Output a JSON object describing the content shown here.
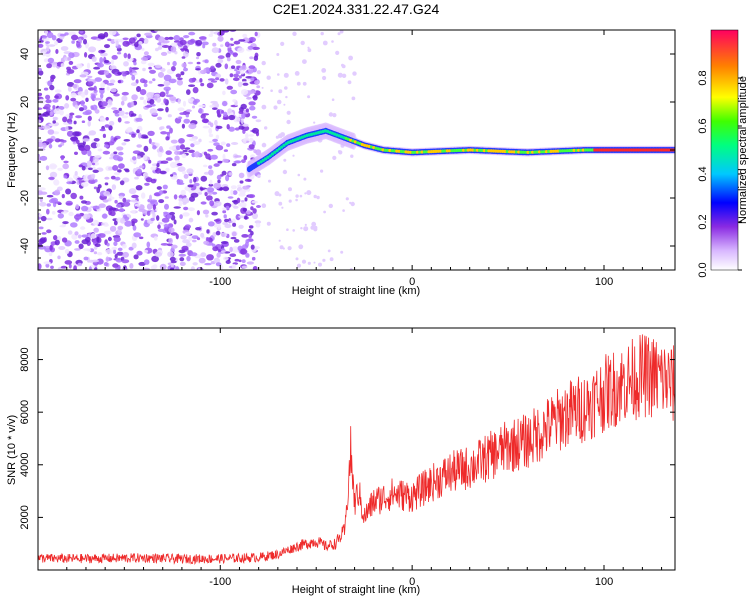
{
  "title": "C2E1.2024.331.22.47.G24",
  "chart_data": [
    {
      "type": "heatmap",
      "xlabel": "Height of straight line (km)",
      "ylabel": "Frequency (Hz)",
      "xlim": [
        -195,
        137
      ],
      "ylim": [
        -50,
        50
      ],
      "xticks": [
        -100,
        0,
        100
      ],
      "yticks": [
        -40,
        -20,
        0,
        20,
        40
      ],
      "colorbar": {
        "label": "Normalized spectral amplitude",
        "range": [
          0.0,
          1.0
        ],
        "ticks": [
          0.0,
          0.2,
          0.4,
          0.6,
          0.8
        ]
      },
      "ridge": {
        "description_points": [
          {
            "x": -85,
            "y": -8
          },
          {
            "x": -75,
            "y": -3
          },
          {
            "x": -65,
            "y": 3
          },
          {
            "x": -55,
            "y": 6
          },
          {
            "x": -45,
            "y": 8
          },
          {
            "x": -35,
            "y": 5
          },
          {
            "x": -25,
            "y": 2
          },
          {
            "x": -15,
            "y": 0
          },
          {
            "x": 0,
            "y": -1
          },
          {
            "x": 30,
            "y": 0
          },
          {
            "x": 60,
            "y": -1
          },
          {
            "x": 90,
            "y": 0
          },
          {
            "x": 137,
            "y": 0
          }
        ]
      },
      "grid": false
    },
    {
      "type": "line",
      "xlabel": "Height of straight line (km)",
      "ylabel": "SNR (10 * v/v)",
      "xlim": [
        -195,
        137
      ],
      "ylim": [
        0,
        9200
      ],
      "xticks": [
        -100,
        0,
        100
      ],
      "yticks": [
        2000,
        4000,
        6000,
        8000
      ],
      "color": "#ee2a2a",
      "series": [
        {
          "x": [
            -195,
            -180,
            -160,
            -140,
            -120,
            -100,
            -90,
            -80,
            -70,
            -60,
            -50,
            -45,
            -40,
            -35,
            -32,
            -30,
            -28,
            -25,
            -20,
            -10,
            0,
            10,
            20,
            30,
            40,
            50,
            60,
            70,
            80,
            90,
            100,
            110,
            120,
            130,
            137
          ],
          "y": [
            450,
            430,
            440,
            460,
            420,
            430,
            450,
            480,
            600,
            900,
            1100,
            900,
            1000,
            1500,
            4500,
            2500,
            3000,
            2000,
            2600,
            2900,
            2800,
            3300,
            3700,
            3900,
            4300,
            4700,
            4900,
            5400,
            5900,
            6200,
            6700,
            7100,
            7400,
            7300,
            7000
          ]
        }
      ],
      "grid": false
    }
  ]
}
